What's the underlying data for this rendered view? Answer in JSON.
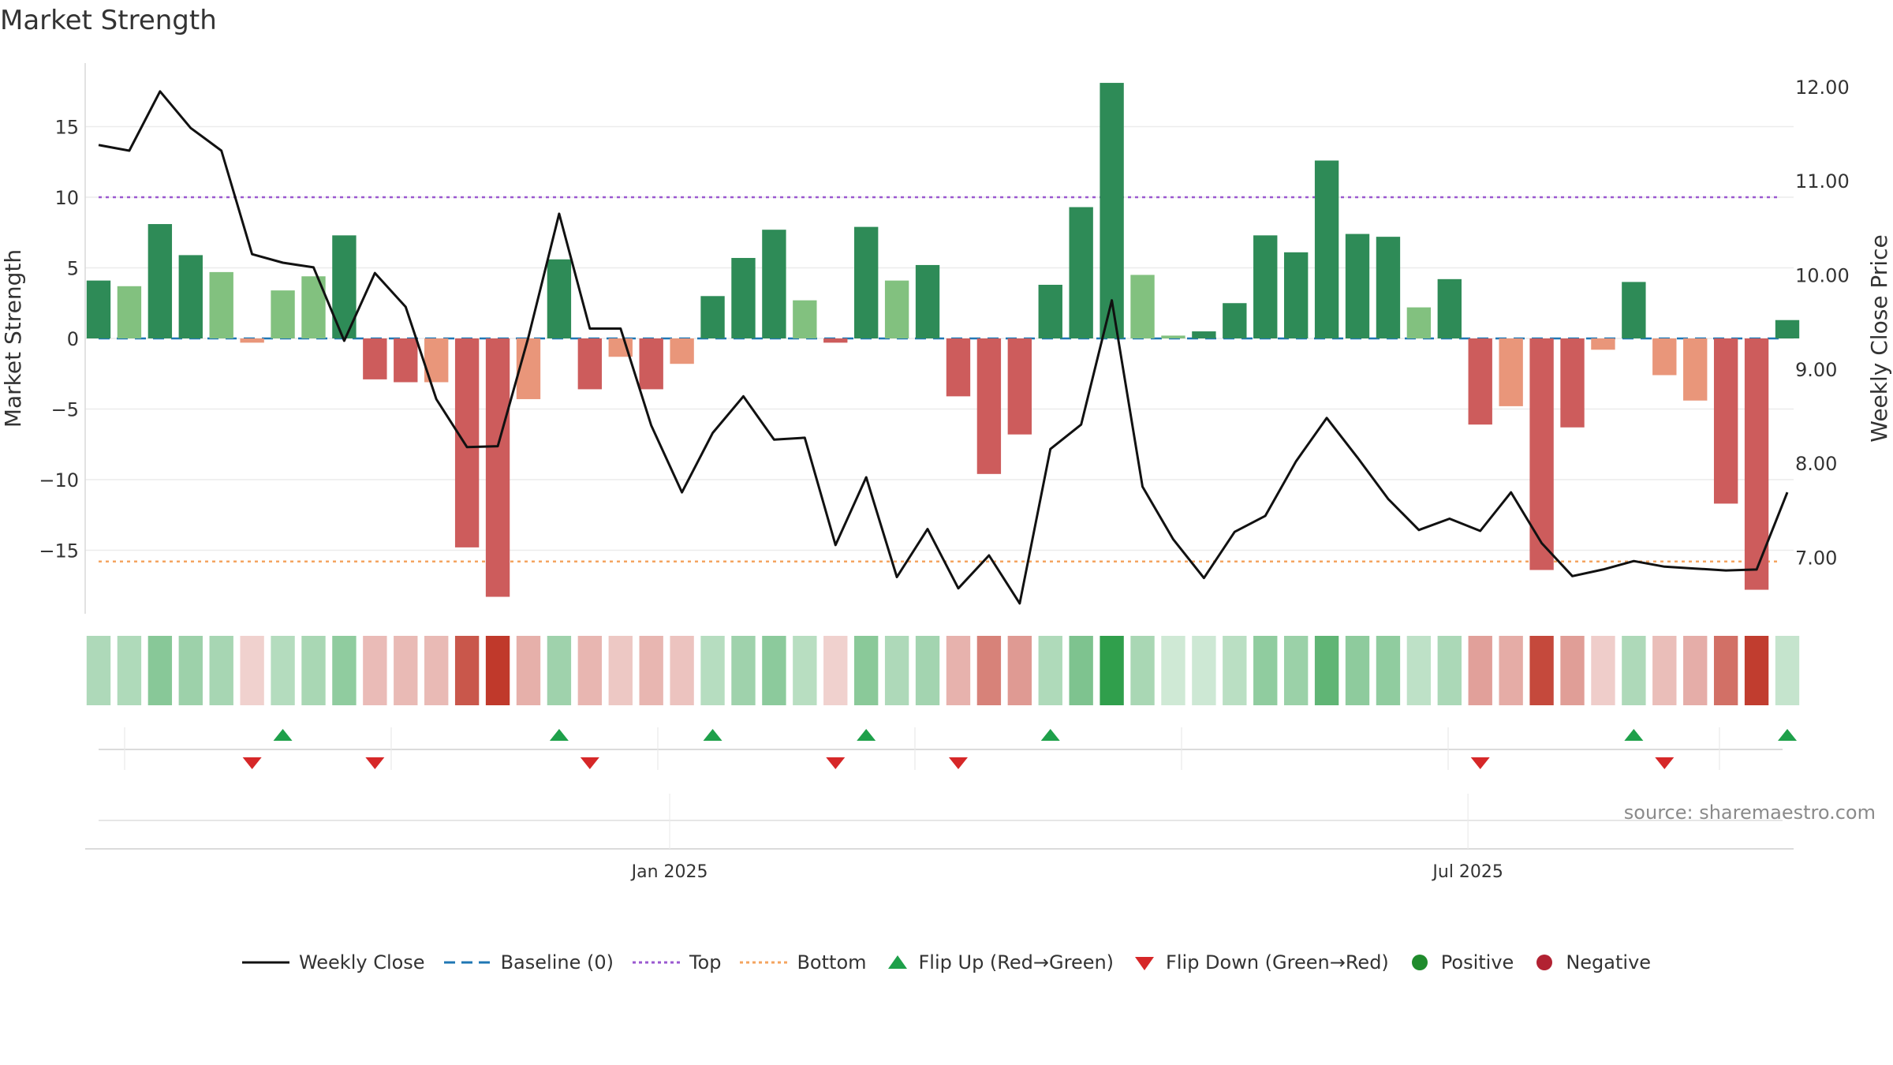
{
  "title": "Market Strength",
  "source": "source: sharemaestro.com",
  "colors": {
    "positive_strong": "#2e8b57",
    "positive_light": "#82c17f",
    "negative_strong": "#cd5c5c",
    "negative_light": "#e9967a",
    "close_line": "#111111",
    "baseline": "#1f77b4",
    "top": "#9b59d0",
    "bottom": "#f4a460",
    "flip_up": "#1ea04a",
    "flip_down": "#d62728",
    "legend_positive": "#1f8b2c",
    "legend_negative": "#b22232"
  },
  "legend": [
    {
      "key": "close",
      "label": "Weekly Close"
    },
    {
      "key": "baseline",
      "label": "Baseline (0)"
    },
    {
      "key": "top",
      "label": "Top"
    },
    {
      "key": "bottom",
      "label": "Bottom"
    },
    {
      "key": "flip_up",
      "label": "Flip Up (Red→Green)"
    },
    {
      "key": "flip_down",
      "label": "Flip Down (Green→Red)"
    },
    {
      "key": "positive",
      "label": "Positive"
    },
    {
      "key": "negative",
      "label": "Negative"
    }
  ],
  "chart_data": {
    "type": "bar+line",
    "title": "Market Strength",
    "ylabel": "Market Strength",
    "y2label": "Weekly Close Price",
    "ylim": [
      -19.5,
      19.5
    ],
    "y2lim": [
      6.4,
      12.25
    ],
    "yticks": [
      15,
      10,
      5,
      0,
      -5,
      -10,
      -15
    ],
    "ytick_labels": [
      "15",
      "10",
      "5",
      "0",
      "−5",
      "−10",
      "−15"
    ],
    "y2ticks": [
      12,
      11,
      10,
      9,
      8,
      7
    ],
    "y2tick_labels": [
      "12.00",
      "11.00",
      "10.00",
      "9.00",
      "8.00",
      "7.00"
    ],
    "top_line": 10.0,
    "bottom_line": -15.8,
    "xtick_labels": [
      {
        "label": "Jan 2025",
        "index": 18.6
      },
      {
        "label": "Jul 2025",
        "index": 44.6
      }
    ],
    "strength": [
      4.1,
      3.7,
      8.1,
      5.9,
      4.7,
      -0.3,
      3.4,
      4.4,
      7.3,
      -2.9,
      -3.1,
      -3.1,
      -14.8,
      -18.3,
      -4.3,
      5.6,
      -3.6,
      -1.3,
      -3.6,
      -1.8,
      3.0,
      5.7,
      7.7,
      2.7,
      -0.3,
      7.9,
      4.1,
      5.2,
      -4.1,
      -9.6,
      -6.8,
      3.8,
      9.3,
      18.1,
      4.5,
      0.2,
      0.5,
      2.5,
      7.3,
      6.1,
      12.6,
      7.4,
      7.2,
      2.2,
      4.2,
      -6.1,
      -4.8,
      -16.4,
      -6.3,
      -0.8,
      4.0,
      -2.6,
      -4.4,
      -11.7,
      -17.8,
      1.3
    ],
    "close": [
      11.38,
      11.32,
      11.95,
      11.56,
      11.32,
      10.22,
      10.13,
      10.08,
      9.3,
      10.02,
      9.66,
      8.68,
      8.17,
      8.18,
      9.34,
      10.65,
      9.43,
      9.43,
      8.4,
      7.69,
      8.32,
      8.71,
      8.25,
      8.27,
      7.13,
      7.85,
      6.79,
      7.3,
      6.67,
      7.02,
      6.51,
      8.15,
      8.41,
      9.73,
      7.75,
      7.19,
      6.78,
      7.27,
      7.44,
      8.02,
      8.48,
      8.06,
      7.62,
      7.29,
      7.41,
      7.28,
      7.69,
      7.15,
      6.8,
      6.87,
      6.96,
      6.9,
      6.88,
      6.86,
      6.87,
      7.69
    ],
    "flip_up": [
      6,
      15,
      20,
      25,
      31,
      50,
      55
    ],
    "flip_down": [
      5,
      9,
      16,
      24,
      28,
      45,
      51
    ],
    "heat_strength": [
      4.1,
      3.7,
      8.1,
      5.9,
      4.7,
      -0.3,
      3.4,
      4.4,
      7.3,
      -2.9,
      -3.1,
      -3.1,
      -14.8,
      -18.3,
      -4.3,
      5.6,
      -3.6,
      -1.3,
      -3.6,
      -1.8,
      3.0,
      5.7,
      7.7,
      2.7,
      -0.3,
      7.9,
      4.1,
      5.2,
      -4.1,
      -9.6,
      -6.8,
      3.8,
      9.3,
      18.1,
      4.5,
      0.2,
      0.5,
      2.5,
      7.3,
      6.1,
      12.6,
      7.4,
      7.2,
      2.2,
      4.2,
      -6.1,
      -4.8,
      -16.4,
      -6.3,
      -0.8,
      4.0,
      -2.6,
      -4.4,
      -11.7,
      -17.8,
      1.3
    ]
  }
}
